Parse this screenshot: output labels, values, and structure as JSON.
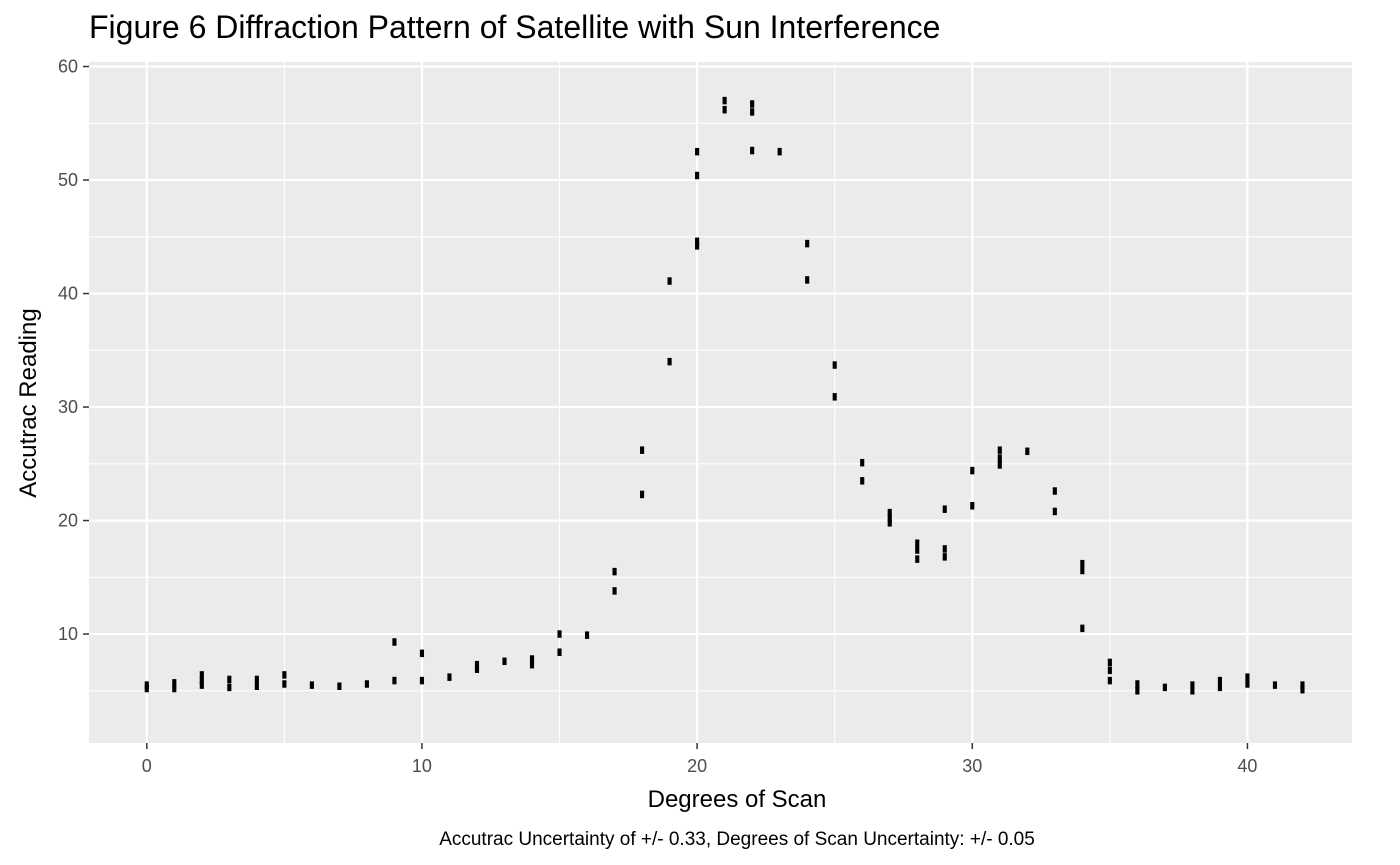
{
  "chart_data": {
    "type": "scatter",
    "title": "Figure 6 Diffraction Pattern of Satellite with Sun Interference",
    "xlabel": "Degrees of Scan",
    "ylabel": "Accutrac Reading",
    "caption": "Accutrac Uncertainty of +/- 0.33, Degrees of Scan Uncertainty: +/- 0.05",
    "x_error": 0.05,
    "y_error": 0.33,
    "xlim": [
      -2.1,
      43.8
    ],
    "ylim": [
      0.4,
      60.4
    ],
    "x_ticks": [
      0,
      10,
      20,
      30,
      40
    ],
    "y_ticks": [
      10,
      20,
      30,
      40,
      50,
      60
    ],
    "x_tick_labels": [
      "0",
      "10",
      "20",
      "30",
      "40"
    ],
    "y_tick_labels": [
      "10",
      "20",
      "30",
      "40",
      "50",
      "60"
    ],
    "grid": true,
    "points": [
      {
        "x": 0,
        "y": 5.5
      },
      {
        "x": 0,
        "y": 5.2
      },
      {
        "x": 1,
        "y": 5.7
      },
      {
        "x": 1,
        "y": 5.2
      },
      {
        "x": 2,
        "y": 6.4
      },
      {
        "x": 2,
        "y": 5.9
      },
      {
        "x": 2,
        "y": 5.5
      },
      {
        "x": 3,
        "y": 6.0
      },
      {
        "x": 3,
        "y": 5.3
      },
      {
        "x": 4,
        "y": 6.0
      },
      {
        "x": 4,
        "y": 5.4
      },
      {
        "x": 5,
        "y": 6.4
      },
      {
        "x": 5,
        "y": 5.6
      },
      {
        "x": 6,
        "y": 5.5
      },
      {
        "x": 7,
        "y": 5.4
      },
      {
        "x": 8,
        "y": 5.6
      },
      {
        "x": 9,
        "y": 9.3
      },
      {
        "x": 9,
        "y": 5.9
      },
      {
        "x": 10,
        "y": 8.3
      },
      {
        "x": 10,
        "y": 5.9
      },
      {
        "x": 11,
        "y": 6.2
      },
      {
        "x": 12,
        "y": 7.3
      },
      {
        "x": 12,
        "y": 6.9
      },
      {
        "x": 13,
        "y": 7.6
      },
      {
        "x": 14,
        "y": 7.8
      },
      {
        "x": 14,
        "y": 7.3
      },
      {
        "x": 15,
        "y": 10.0
      },
      {
        "x": 15,
        "y": 8.4
      },
      {
        "x": 16,
        "y": 9.9
      },
      {
        "x": 17,
        "y": 15.5
      },
      {
        "x": 17,
        "y": 13.8
      },
      {
        "x": 18,
        "y": 26.2
      },
      {
        "x": 18,
        "y": 22.3
      },
      {
        "x": 19,
        "y": 41.1
      },
      {
        "x": 19,
        "y": 34.0
      },
      {
        "x": 20,
        "y": 52.5
      },
      {
        "x": 20,
        "y": 50.4
      },
      {
        "x": 20,
        "y": 44.6
      },
      {
        "x": 20,
        "y": 44.2
      },
      {
        "x": 21,
        "y": 57.0
      },
      {
        "x": 21,
        "y": 56.2
      },
      {
        "x": 22,
        "y": 56.7
      },
      {
        "x": 22,
        "y": 56.0
      },
      {
        "x": 22,
        "y": 52.6
      },
      {
        "x": 23,
        "y": 52.5
      },
      {
        "x": 24,
        "y": 44.4
      },
      {
        "x": 24,
        "y": 41.2
      },
      {
        "x": 25,
        "y": 33.7
      },
      {
        "x": 25,
        "y": 30.9
      },
      {
        "x": 26,
        "y": 25.1
      },
      {
        "x": 26,
        "y": 23.5
      },
      {
        "x": 27,
        "y": 20.7
      },
      {
        "x": 27,
        "y": 20.2
      },
      {
        "x": 27,
        "y": 19.8
      },
      {
        "x": 28,
        "y": 18.0
      },
      {
        "x": 28,
        "y": 17.4
      },
      {
        "x": 28,
        "y": 16.6
      },
      {
        "x": 29,
        "y": 21.0
      },
      {
        "x": 29,
        "y": 17.5
      },
      {
        "x": 29,
        "y": 16.8
      },
      {
        "x": 30,
        "y": 24.4
      },
      {
        "x": 30,
        "y": 21.3
      },
      {
        "x": 31,
        "y": 26.2
      },
      {
        "x": 31,
        "y": 25.5
      },
      {
        "x": 31,
        "y": 24.9
      },
      {
        "x": 32,
        "y": 26.1
      },
      {
        "x": 33,
        "y": 22.6
      },
      {
        "x": 33,
        "y": 20.8
      },
      {
        "x": 34,
        "y": 16.2
      },
      {
        "x": 34,
        "y": 15.6
      },
      {
        "x": 34,
        "y": 10.5
      },
      {
        "x": 35,
        "y": 7.5
      },
      {
        "x": 35,
        "y": 6.8
      },
      {
        "x": 35,
        "y": 5.9
      },
      {
        "x": 36,
        "y": 5.6
      },
      {
        "x": 36,
        "y": 5.0
      },
      {
        "x": 37,
        "y": 5.3
      },
      {
        "x": 38,
        "y": 5.5
      },
      {
        "x": 38,
        "y": 5.0
      },
      {
        "x": 39,
        "y": 5.9
      },
      {
        "x": 39,
        "y": 5.3
      },
      {
        "x": 40,
        "y": 6.2
      },
      {
        "x": 40,
        "y": 5.6
      },
      {
        "x": 41,
        "y": 5.5
      },
      {
        "x": 42,
        "y": 5.5
      },
      {
        "x": 42,
        "y": 5.1
      }
    ]
  }
}
